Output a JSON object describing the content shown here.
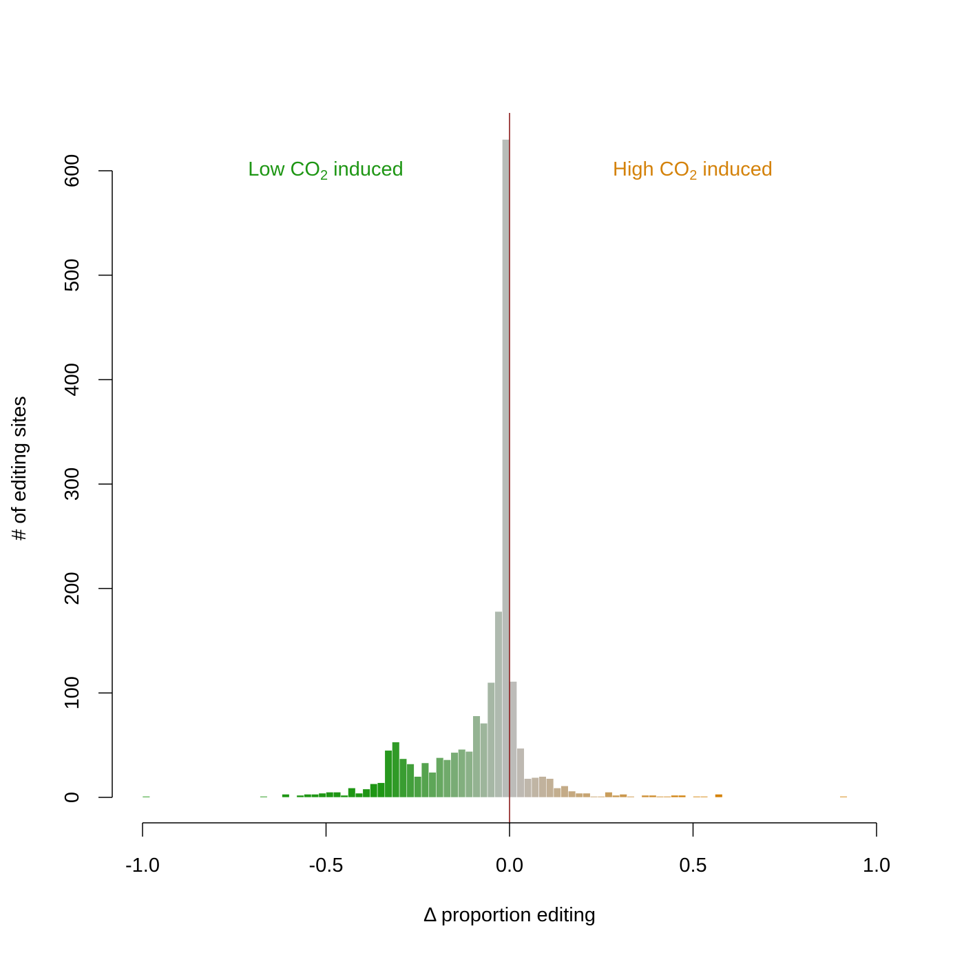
{
  "chart_data": {
    "type": "bar",
    "xlabel": "Δ proportion editing",
    "ylabel": "# of editing sites",
    "xlim": [
      -1.0,
      1.0
    ],
    "ylim": [
      0,
      600
    ],
    "x_ticks": [
      "-1.0",
      "-0.5",
      "0.0",
      "0.5",
      "1.0"
    ],
    "y_ticks": [
      "0",
      "100",
      "200",
      "300",
      "400",
      "500",
      "600"
    ],
    "bin_width": 0.02,
    "bins": [
      {
        "x0": -1.0,
        "x1": -0.98,
        "count": 1
      },
      {
        "x0": -0.68,
        "x1": -0.66,
        "count": 1
      },
      {
        "x0": -0.62,
        "x1": -0.6,
        "count": 3
      },
      {
        "x0": -0.58,
        "x1": -0.56,
        "count": 2
      },
      {
        "x0": -0.56,
        "x1": -0.54,
        "count": 3
      },
      {
        "x0": -0.54,
        "x1": -0.52,
        "count": 3
      },
      {
        "x0": -0.52,
        "x1": -0.5,
        "count": 4
      },
      {
        "x0": -0.5,
        "x1": -0.48,
        "count": 5
      },
      {
        "x0": -0.48,
        "x1": -0.46,
        "count": 5
      },
      {
        "x0": -0.46,
        "x1": -0.44,
        "count": 2
      },
      {
        "x0": -0.44,
        "x1": -0.42,
        "count": 9
      },
      {
        "x0": -0.42,
        "x1": -0.4,
        "count": 4
      },
      {
        "x0": -0.4,
        "x1": -0.38,
        "count": 8
      },
      {
        "x0": -0.38,
        "x1": -0.36,
        "count": 13
      },
      {
        "x0": -0.36,
        "x1": -0.34,
        "count": 14
      },
      {
        "x0": -0.34,
        "x1": -0.32,
        "count": 45
      },
      {
        "x0": -0.32,
        "x1": -0.3,
        "count": 53
      },
      {
        "x0": -0.3,
        "x1": -0.28,
        "count": 37
      },
      {
        "x0": -0.28,
        "x1": -0.26,
        "count": 32
      },
      {
        "x0": -0.26,
        "x1": -0.24,
        "count": 20
      },
      {
        "x0": -0.24,
        "x1": -0.22,
        "count": 33
      },
      {
        "x0": -0.22,
        "x1": -0.2,
        "count": 24
      },
      {
        "x0": -0.2,
        "x1": -0.18,
        "count": 38
      },
      {
        "x0": -0.18,
        "x1": -0.16,
        "count": 36
      },
      {
        "x0": -0.16,
        "x1": -0.14,
        "count": 43
      },
      {
        "x0": -0.14,
        "x1": -0.12,
        "count": 46
      },
      {
        "x0": -0.12,
        "x1": -0.1,
        "count": 44
      },
      {
        "x0": -0.1,
        "x1": -0.08,
        "count": 78
      },
      {
        "x0": -0.08,
        "x1": -0.06,
        "count": 71
      },
      {
        "x0": -0.06,
        "x1": -0.04,
        "count": 110
      },
      {
        "x0": -0.04,
        "x1": -0.02,
        "count": 178
      },
      {
        "x0": -0.02,
        "x1": 0.0,
        "count": 630
      },
      {
        "x0": 0.0,
        "x1": 0.02,
        "count": 111
      },
      {
        "x0": 0.02,
        "x1": 0.04,
        "count": 47
      },
      {
        "x0": 0.04,
        "x1": 0.06,
        "count": 18
      },
      {
        "x0": 0.06,
        "x1": 0.08,
        "count": 19
      },
      {
        "x0": 0.08,
        "x1": 0.1,
        "count": 20
      },
      {
        "x0": 0.1,
        "x1": 0.12,
        "count": 18
      },
      {
        "x0": 0.12,
        "x1": 0.14,
        "count": 9
      },
      {
        "x0": 0.14,
        "x1": 0.16,
        "count": 11
      },
      {
        "x0": 0.16,
        "x1": 0.18,
        "count": 6
      },
      {
        "x0": 0.18,
        "x1": 0.2,
        "count": 4
      },
      {
        "x0": 0.2,
        "x1": 0.22,
        "count": 4
      },
      {
        "x0": 0.22,
        "x1": 0.24,
        "count": 1
      },
      {
        "x0": 0.24,
        "x1": 0.26,
        "count": 1
      },
      {
        "x0": 0.26,
        "x1": 0.28,
        "count": 5
      },
      {
        "x0": 0.28,
        "x1": 0.3,
        "count": 2
      },
      {
        "x0": 0.3,
        "x1": 0.32,
        "count": 3
      },
      {
        "x0": 0.32,
        "x1": 0.34,
        "count": 1
      },
      {
        "x0": 0.36,
        "x1": 0.38,
        "count": 2
      },
      {
        "x0": 0.38,
        "x1": 0.4,
        "count": 2
      },
      {
        "x0": 0.4,
        "x1": 0.42,
        "count": 1
      },
      {
        "x0": 0.42,
        "x1": 0.44,
        "count": 1
      },
      {
        "x0": 0.44,
        "x1": 0.46,
        "count": 2
      },
      {
        "x0": 0.46,
        "x1": 0.48,
        "count": 2
      },
      {
        "x0": 0.5,
        "x1": 0.52,
        "count": 1
      },
      {
        "x0": 0.52,
        "x1": 0.54,
        "count": 1
      },
      {
        "x0": 0.56,
        "x1": 0.58,
        "count": 3
      },
      {
        "x0": 0.9,
        "x1": 0.92,
        "count": 1
      }
    ],
    "reference_line": {
      "x": 0.0,
      "color": "#8b1a1a"
    },
    "annotations": [
      {
        "text_main": "Low CO",
        "subscript": "2",
        "text_end": " induced",
        "color": "#1e9614"
      },
      {
        "text_main": "High CO",
        "subscript": "2",
        "text_end": " induced",
        "color": "#d4820a"
      }
    ],
    "colors": {
      "low": "#1e9614",
      "neutral": "#bdbdbd",
      "high": "#d4820a"
    },
    "grid": false,
    "legend": "none"
  }
}
